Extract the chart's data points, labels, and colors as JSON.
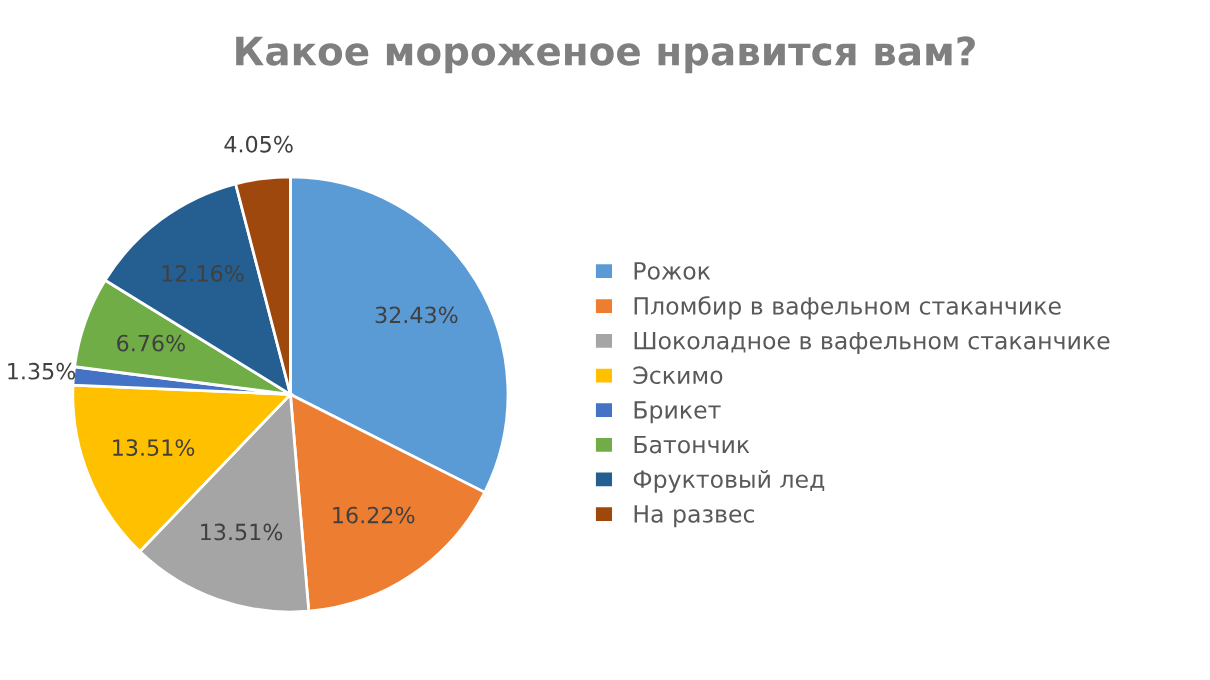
{
  "chart_data": {
    "type": "pie",
    "title": "Какое мороженое нравится вам?",
    "categories": [
      "Рожок",
      "Пломбир в вафельном стаканчике",
      "Шоколадное в вафельном стаканчике",
      "Эскимо",
      "Брикет",
      "Батончик",
      "Фруктовый лед",
      "На развес"
    ],
    "values": [
      32.43,
      16.22,
      13.51,
      13.51,
      1.35,
      6.76,
      12.16,
      4.05
    ],
    "value_labels": [
      "32.43%",
      "16.22%",
      "13.51%",
      "13.51%",
      "1.35%",
      "6.76%",
      "12.16%",
      "4.05%"
    ],
    "colors": [
      "#5b9bd5",
      "#ed7d31",
      "#a5a5a5",
      "#ffc000",
      "#4472c4",
      "#70ad47",
      "#255e91",
      "#9e480e"
    ],
    "legend": "right"
  }
}
